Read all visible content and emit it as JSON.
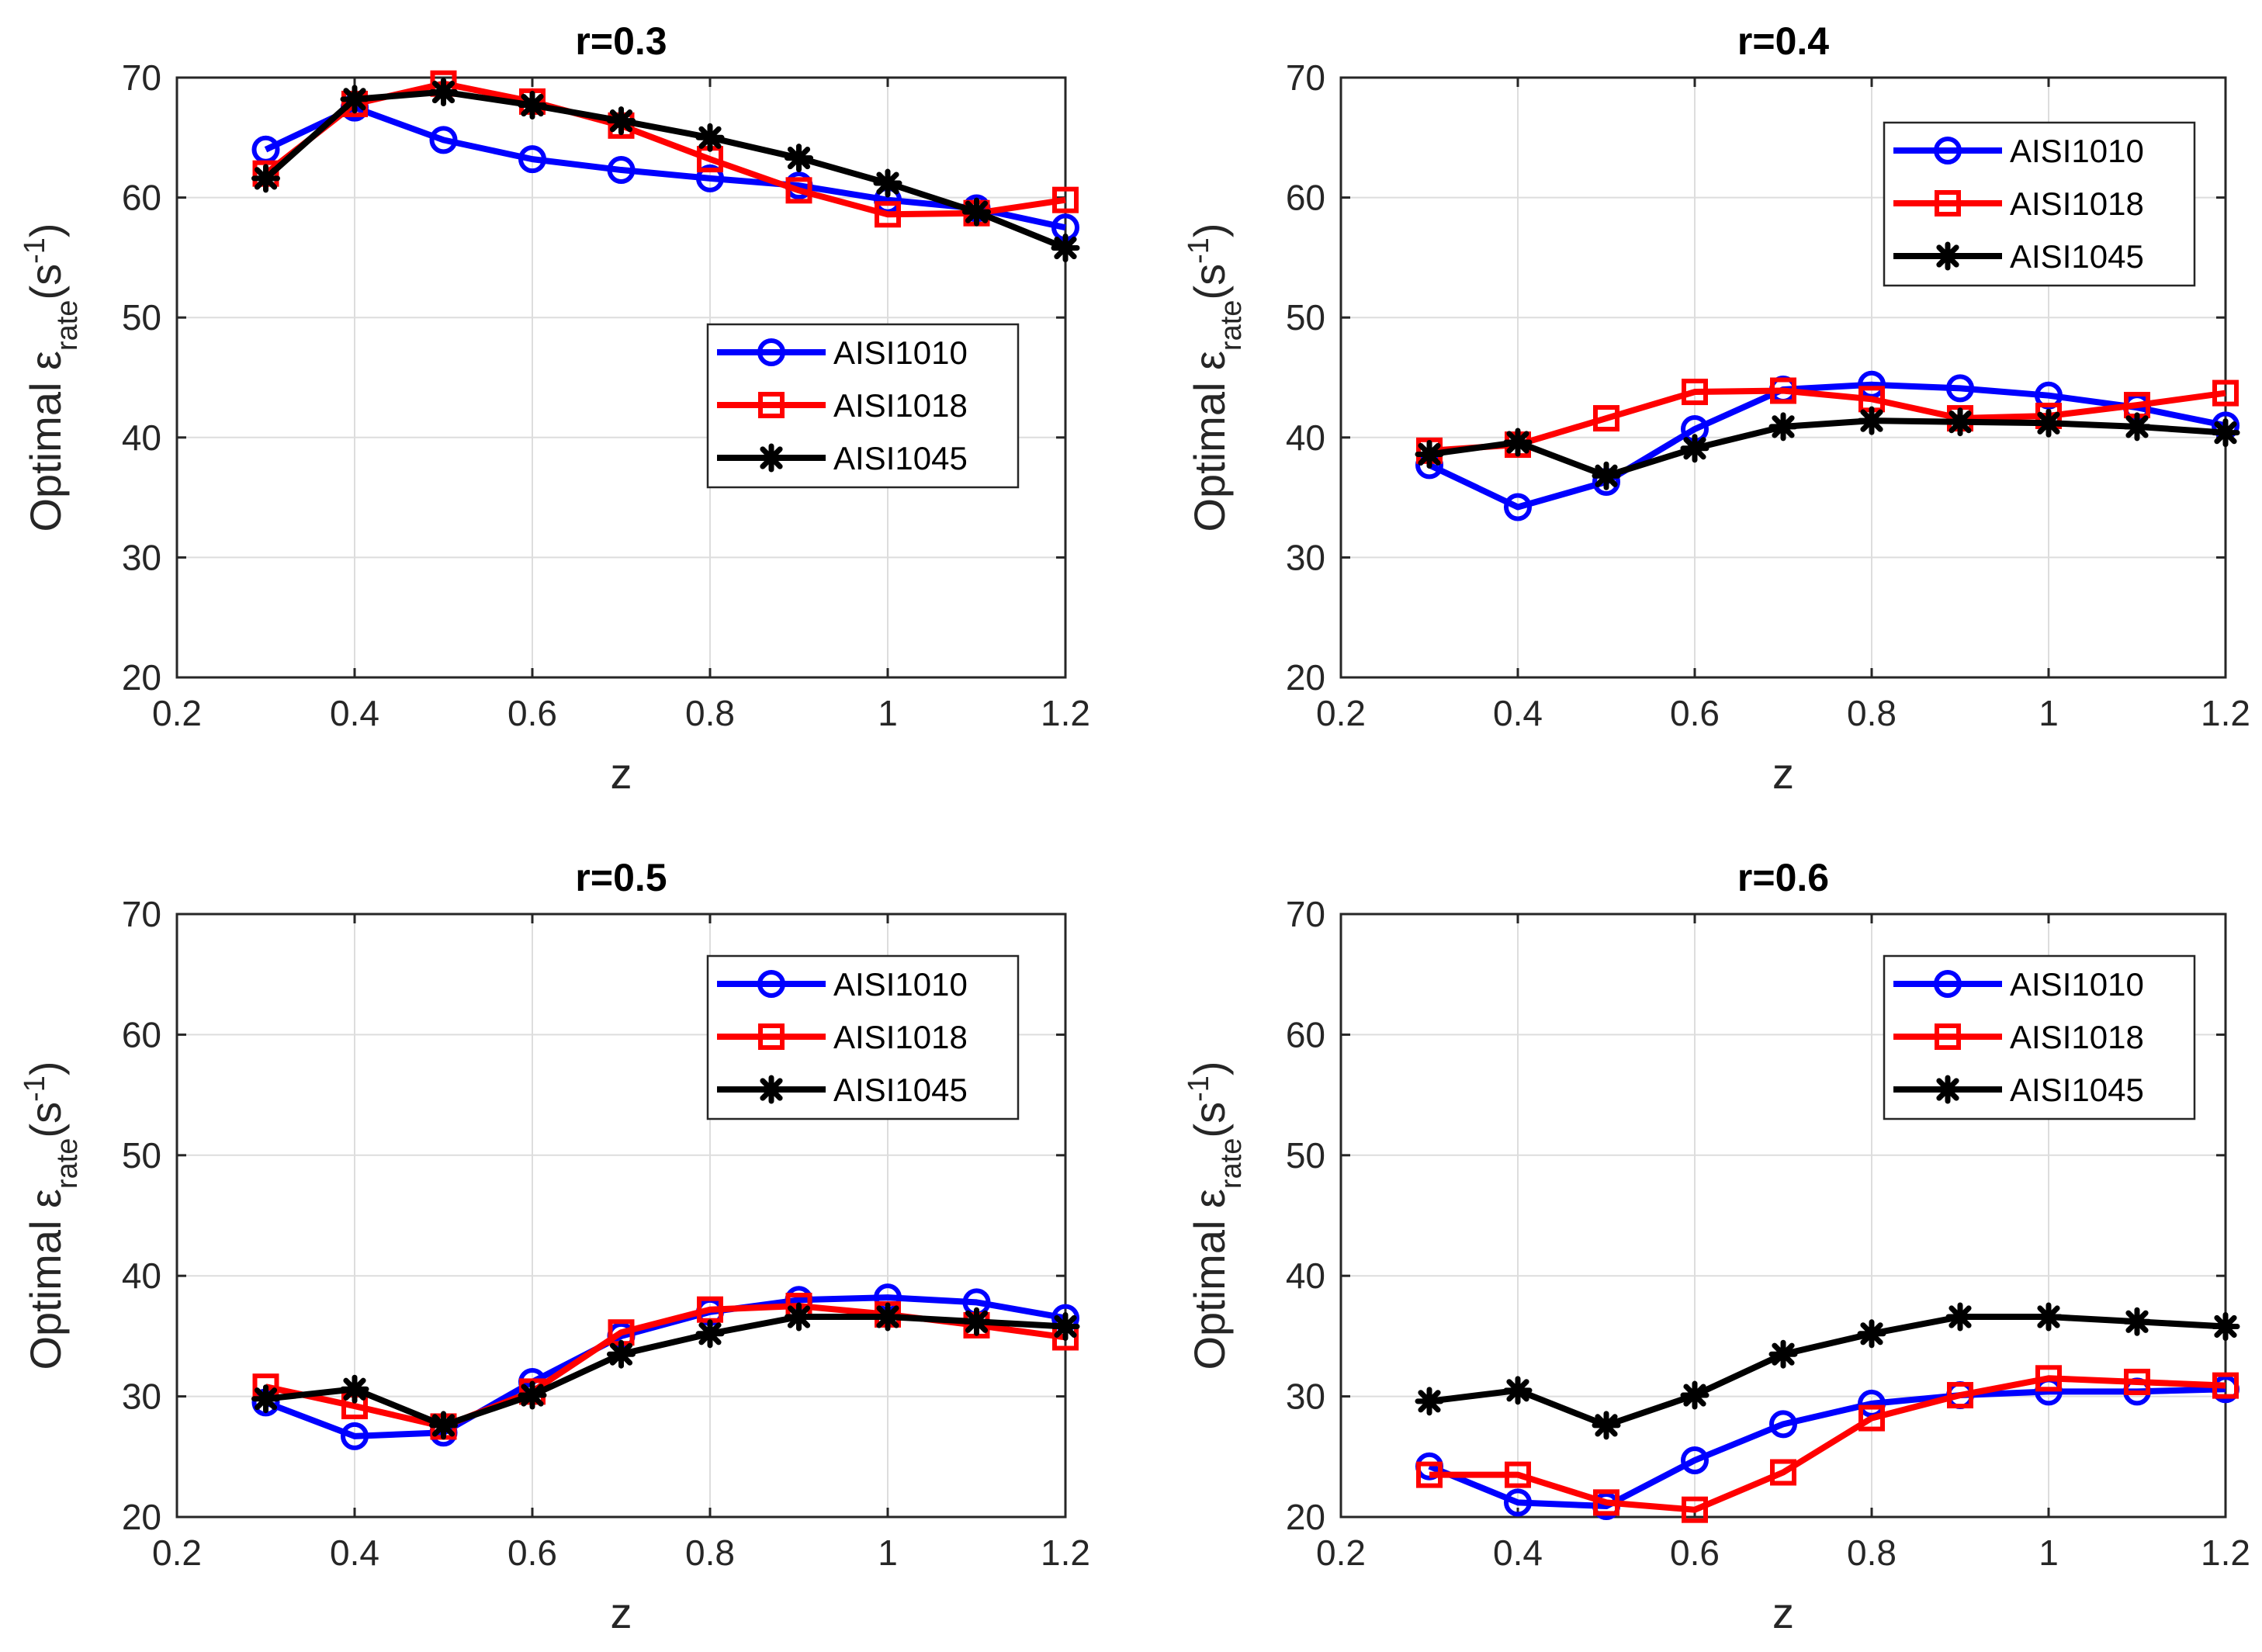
{
  "figure": {
    "xlabel": "z",
    "ylabel": {
      "prefix": "Optimal ",
      "symbol": "ε",
      "subscript": "rate",
      "unit_open": "(s",
      "unit_sup": "-1",
      "unit_close": ")"
    },
    "series_styles": [
      {
        "name": "AISI1010",
        "color": "#0000ff",
        "marker": "circle"
      },
      {
        "name": "AISI1018",
        "color": "#ff0000",
        "marker": "square"
      },
      {
        "name": "AISI1045",
        "color": "#000000",
        "marker": "asterisk"
      }
    ]
  },
  "chart_data": [
    {
      "type": "line",
      "title": "r=0.3",
      "xlabel": "z",
      "ylabel": "Optimal ε_rate (s^-1)",
      "xlim": [
        0.2,
        1.2
      ],
      "ylim": [
        20,
        70
      ],
      "xticks": [
        "0.2",
        "0.4",
        "0.6",
        "0.8",
        "1",
        "1.2"
      ],
      "yticks": [
        "20",
        "30",
        "40",
        "50",
        "60",
        "70"
      ],
      "grid": true,
      "legend_position": "center-right",
      "x": [
        0.3,
        0.4,
        0.5,
        0.6,
        0.7,
        0.8,
        0.9,
        1.0,
        1.1,
        1.2
      ],
      "series": [
        {
          "name": "AISI1010",
          "values": [
            64.0,
            67.5,
            64.8,
            63.2,
            62.3,
            61.6,
            61.0,
            59.8,
            59.1,
            57.5
          ]
        },
        {
          "name": "AISI1018",
          "values": [
            62.0,
            67.8,
            69.5,
            68.0,
            66.0,
            63.2,
            60.6,
            58.6,
            58.7,
            59.8
          ]
        },
        {
          "name": "AISI1045",
          "values": [
            61.6,
            68.2,
            68.8,
            67.7,
            66.4,
            65.0,
            63.3,
            61.2,
            58.8,
            55.8
          ]
        }
      ]
    },
    {
      "type": "line",
      "title": "r=0.4",
      "xlabel": "z",
      "ylabel": "Optimal ε_rate (s^-1)",
      "xlim": [
        0.2,
        1.2
      ],
      "ylim": [
        20,
        70
      ],
      "xticks": [
        "0.2",
        "0.4",
        "0.6",
        "0.8",
        "1",
        "1.2"
      ],
      "yticks": [
        "20",
        "30",
        "40",
        "50",
        "60",
        "70"
      ],
      "grid": true,
      "legend_position": "top-right",
      "x": [
        0.3,
        0.4,
        0.5,
        0.6,
        0.7,
        0.8,
        0.9,
        1.0,
        1.1,
        1.2
      ],
      "series": [
        {
          "name": "AISI1010",
          "values": [
            37.7,
            34.2,
            36.3,
            40.7,
            44.0,
            44.4,
            44.1,
            43.5,
            42.5,
            41.0
          ]
        },
        {
          "name": "AISI1018",
          "values": [
            38.9,
            39.4,
            41.6,
            43.8,
            43.9,
            43.2,
            41.6,
            41.8,
            42.7,
            43.7
          ]
        },
        {
          "name": "AISI1045",
          "values": [
            38.6,
            39.6,
            36.8,
            39.1,
            40.9,
            41.4,
            41.3,
            41.2,
            40.9,
            40.4
          ]
        }
      ]
    },
    {
      "type": "line",
      "title": "r=0.5",
      "xlabel": "z",
      "ylabel": "Optimal ε_rate (s^-1)",
      "xlim": [
        0.2,
        1.2
      ],
      "ylim": [
        20,
        70
      ],
      "xticks": [
        "0.2",
        "0.4",
        "0.6",
        "0.8",
        "1",
        "1.2"
      ],
      "yticks": [
        "20",
        "30",
        "40",
        "50",
        "60",
        "70"
      ],
      "grid": true,
      "legend_position": "top-right",
      "x": [
        0.3,
        0.4,
        0.5,
        0.6,
        0.7,
        0.8,
        0.9,
        1.0,
        1.1,
        1.2
      ],
      "series": [
        {
          "name": "AISI1010",
          "values": [
            29.5,
            26.7,
            27.0,
            31.2,
            35.0,
            37.0,
            38.0,
            38.2,
            37.8,
            36.5
          ]
        },
        {
          "name": "AISI1018",
          "values": [
            30.8,
            29.2,
            27.5,
            30.4,
            35.3,
            37.2,
            37.5,
            36.8,
            35.9,
            34.9
          ]
        },
        {
          "name": "AISI1045",
          "values": [
            29.8,
            30.6,
            27.6,
            30.1,
            33.5,
            35.2,
            36.6,
            36.6,
            36.2,
            35.8
          ]
        }
      ]
    },
    {
      "type": "line",
      "title": "r=0.6",
      "xlabel": "z",
      "ylabel": "Optimal ε_rate (s^-1)",
      "xlim": [
        0.2,
        1.2
      ],
      "ylim": [
        20,
        70
      ],
      "xticks": [
        "0.2",
        "0.4",
        "0.6",
        "0.8",
        "1",
        "1.2"
      ],
      "yticks": [
        "20",
        "30",
        "40",
        "50",
        "60",
        "70"
      ],
      "grid": true,
      "legend_position": "top-right",
      "x": [
        0.3,
        0.4,
        0.5,
        0.6,
        0.7,
        0.8,
        0.9,
        1.0,
        1.1,
        1.2
      ],
      "series": [
        {
          "name": "AISI1010",
          "values": [
            24.2,
            21.2,
            20.9,
            24.7,
            27.7,
            29.4,
            30.1,
            30.4,
            30.4,
            30.6
          ]
        },
        {
          "name": "AISI1018",
          "values": [
            23.5,
            23.5,
            21.2,
            20.6,
            23.7,
            28.2,
            30.1,
            31.5,
            31.2,
            30.9
          ]
        },
        {
          "name": "AISI1045",
          "values": [
            29.6,
            30.5,
            27.6,
            30.1,
            33.5,
            35.2,
            36.6,
            36.6,
            36.2,
            35.8
          ]
        }
      ]
    }
  ]
}
